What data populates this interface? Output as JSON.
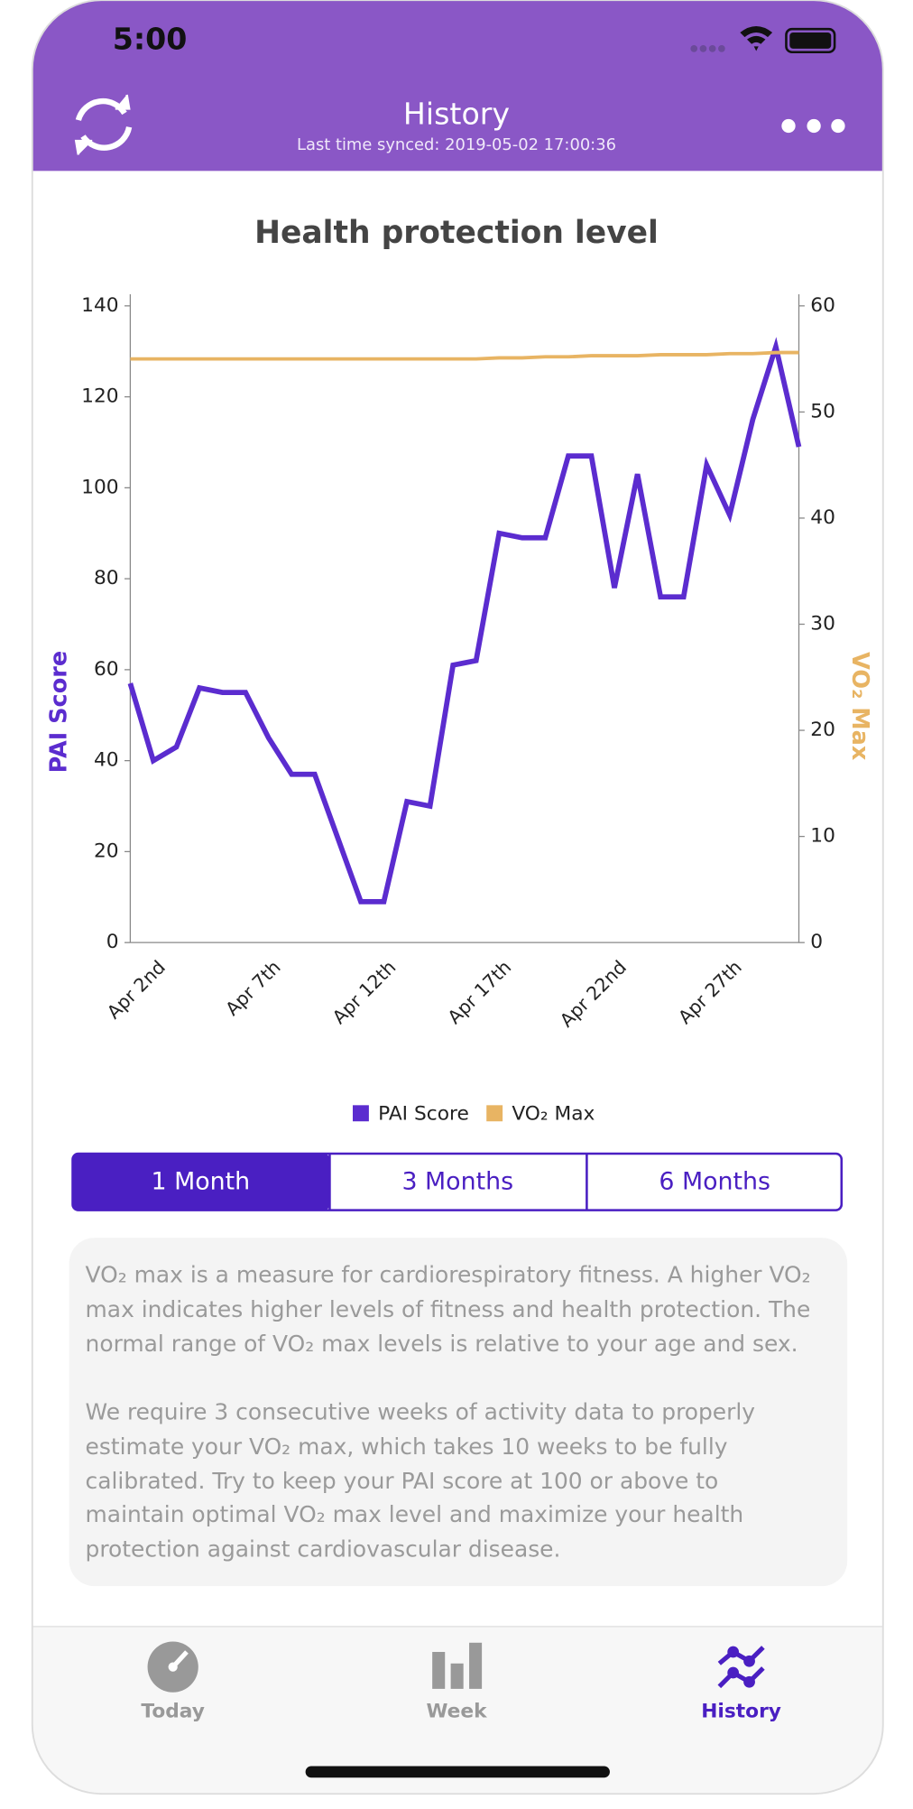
{
  "status": {
    "time": "5:00"
  },
  "header": {
    "title": "History",
    "subtitle": "Last time synced: 2019-05-02 17:00:36"
  },
  "chart_data": {
    "type": "line",
    "title": "Health protection level",
    "categories": [
      "Apr 2nd",
      null,
      null,
      null,
      null,
      "Apr 7th",
      null,
      null,
      null,
      null,
      "Apr 12th",
      null,
      null,
      null,
      null,
      "Apr 17th",
      null,
      null,
      null,
      null,
      "Apr 22nd",
      null,
      null,
      null,
      null,
      "Apr 27th",
      null,
      null,
      null,
      null
    ],
    "series": [
      {
        "name": "PAI Score",
        "color": "#5b2ccf",
        "values": [
          57,
          40,
          43,
          56,
          55,
          55,
          45,
          37,
          37,
          23,
          9,
          9,
          31,
          30,
          61,
          62,
          90,
          89,
          89,
          107,
          107,
          78,
          103,
          76,
          76,
          105,
          94,
          115,
          131,
          109
        ]
      },
      {
        "name": "VO₂ Max",
        "color": "#e8b463",
        "axis": "y2",
        "values": [
          55,
          55,
          55,
          55,
          55,
          55,
          55,
          55,
          55,
          55,
          55,
          55,
          55,
          55,
          55,
          55,
          55.1,
          55.1,
          55.2,
          55.2,
          55.3,
          55.3,
          55.3,
          55.4,
          55.4,
          55.4,
          55.5,
          55.5,
          55.6,
          55.6
        ]
      }
    ],
    "ylabel": "PAI Score",
    "y2label": "VO₂ Max",
    "ylim": [
      0,
      140
    ],
    "yticks": [
      0,
      20,
      40,
      60,
      80,
      100,
      120,
      140
    ],
    "y2lim": [
      0,
      60
    ],
    "y2ticks": [
      0,
      10,
      20,
      30,
      40,
      50,
      60
    ],
    "legend": "bottom"
  },
  "segments": [
    "1 Month",
    "3 Months",
    "6 Months"
  ],
  "info": {
    "paragraphs": [
      {
        "lines": [
          "VO₂ max is a measure for cardiorespiratory fitness. A higher VO₂",
          "max indicates higher levels of fitness and health protection. The",
          "normal range of VO₂ max levels is relative to your age and sex."
        ]
      },
      {
        "lines": [
          "We require 3 consecutive weeks of activity data to properly",
          "estimate your VO₂ max, which takes 10 weeks to be fully",
          "calibrated. Try to keep your PAI score at 100 or above to",
          "maintain optimal VO₂ max level and maximize your health",
          "protection against cardiovascular disease."
        ]
      }
    ]
  },
  "tabs": [
    "Today",
    "Week",
    "History"
  ]
}
